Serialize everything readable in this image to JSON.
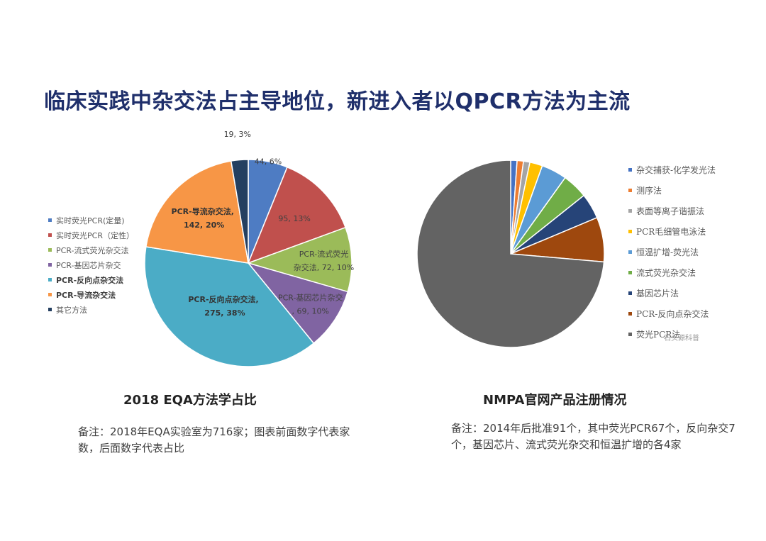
{
  "title": "临床实践中杂交法占主导地位，新进入者以QPCR方法为主流",
  "chart_data": [
    {
      "type": "pie",
      "title": "2018 EQA方法学占比",
      "note": "备注：2018年EQA实验室为716家；图表前面数字代表家数，后面数字代表占比",
      "legend_position": "left",
      "slices": [
        {
          "label": "实时荧光PCR(定量)",
          "value": 44,
          "percent": 6,
          "data_label": "44, 6%",
          "color": "#4e7cc3"
        },
        {
          "label": "实时荧光PCR（定性）",
          "value": 95,
          "percent": 13,
          "data_label": "95, 13%",
          "color": "#c0504d"
        },
        {
          "label": "PCR-流式荧光杂交法",
          "value": 72,
          "percent": 10,
          "data_label": "PCR-流式荧光杂交法, 72, 10%",
          "color": "#9bbb59"
        },
        {
          "label": "PCR-基因芯片杂交",
          "value": 69,
          "percent": 10,
          "data_label": "PCR-基因芯片杂交, 69, 10%",
          "color": "#8064a2"
        },
        {
          "label": "PCR-反向点杂交法",
          "value": 275,
          "percent": 38,
          "data_label": "PCR-反向点杂交法, 275, 38%",
          "color": "#4bacc6"
        },
        {
          "label": "PCR-导流杂交法",
          "value": 142,
          "percent": 20,
          "data_label": "PCR-导流杂交法, 142, 20%",
          "color": "#f79646"
        },
        {
          "label": "其它方法",
          "value": 19,
          "percent": 3,
          "data_label": "19, 3%",
          "color": "#243f60"
        }
      ]
    },
    {
      "type": "pie",
      "title": "NMPA官网产品注册情况",
      "note": "备注：2014年后批准91个，其中荧光PCR67个，反向杂交7个，基因芯片、流式荧光杂交和恒温扩增的各4家",
      "legend_position": "right",
      "slices": [
        {
          "label": "杂交捕获-化学发光法",
          "value": 1,
          "color": "#4472c4"
        },
        {
          "label": "测序法",
          "value": 1,
          "color": "#ed7d31"
        },
        {
          "label": "表面等离子谐振法",
          "value": 1,
          "color": "#a5a5a5"
        },
        {
          "label": "PCR毛细管电泳法",
          "value": 2,
          "color": "#ffc000"
        },
        {
          "label": "恒温扩增-荧光法",
          "value": 4,
          "color": "#5b9bd5"
        },
        {
          "label": "流式荧光杂交法",
          "value": 4,
          "color": "#70ad47"
        },
        {
          "label": "基因芯片法",
          "value": 4,
          "color": "#264478"
        },
        {
          "label": "PCR-反向点杂交法",
          "value": 7,
          "color": "#9e480e"
        },
        {
          "label": "荧光PCR法",
          "value": 67,
          "color": "#636363"
        }
      ]
    }
  ],
  "watermark": "石头源科普"
}
